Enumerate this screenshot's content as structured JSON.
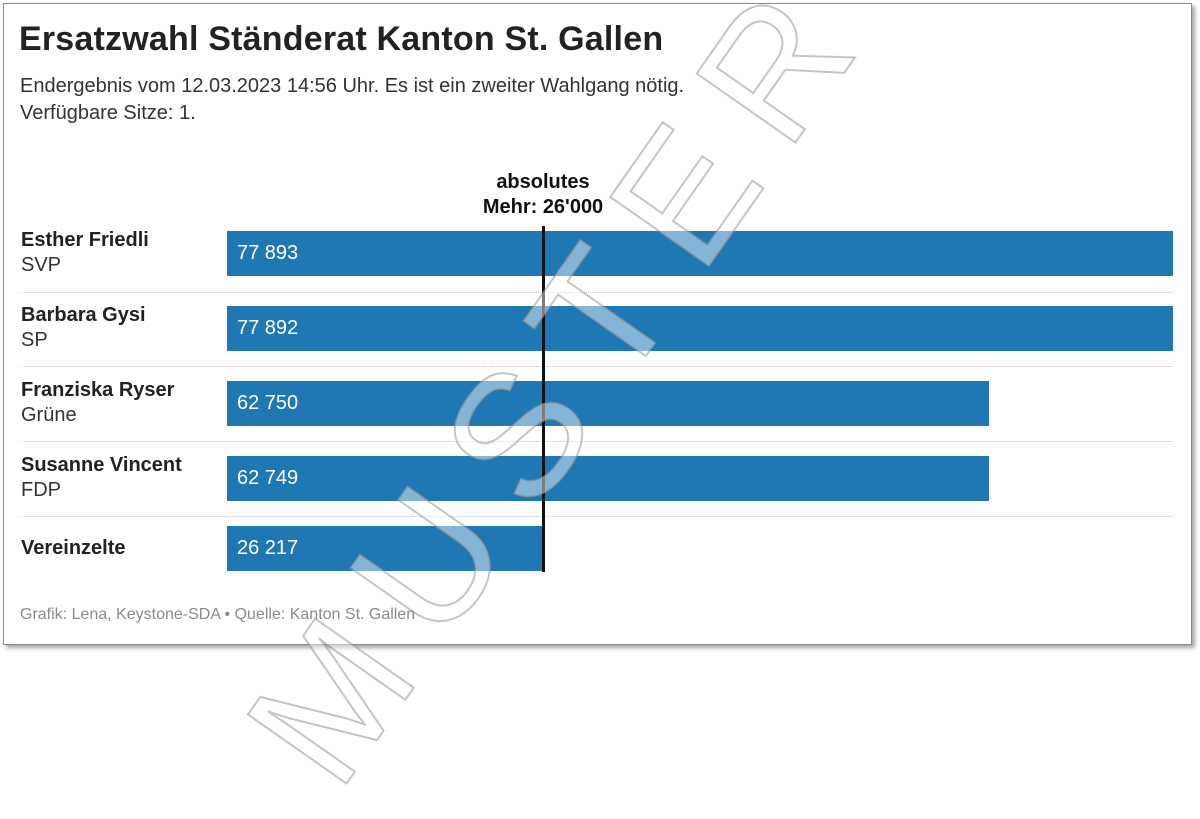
{
  "chart_data": {
    "type": "bar",
    "orientation": "horizontal",
    "title": "Ersatzwahl Ständerat Kanton St. Gallen",
    "subtitle_lines": [
      "Endergebnis vom 12.03.2023 14:56 Uhr. Es ist ein zweiter Wahlgang nötig.",
      "Verfügbare Sitze: 1."
    ],
    "categories": [
      {
        "name": "Esther Friedli",
        "party": "SVP"
      },
      {
        "name": "Barbara Gysi",
        "party": "SP"
      },
      {
        "name": "Franziska Ryser",
        "party": "Grüne"
      },
      {
        "name": "Susanne Vincent",
        "party": "FDP"
      },
      {
        "name": "Vereinzelte",
        "party": ""
      }
    ],
    "values": [
      77893,
      77892,
      62750,
      62749,
      26217
    ],
    "value_labels": [
      "77 893",
      "77 892",
      "62 750",
      "62 749",
      "26 217"
    ],
    "xlim": [
      0,
      77893
    ],
    "reference_line": {
      "value": 26000,
      "label_lines": [
        "absolutes",
        "Mehr: 26'000"
      ]
    },
    "bar_color": "#1f77b4"
  },
  "watermark": "MUSTER",
  "footer": "Grafik: Lena, Keystone-SDA • Quelle: Kanton St. Gallen"
}
